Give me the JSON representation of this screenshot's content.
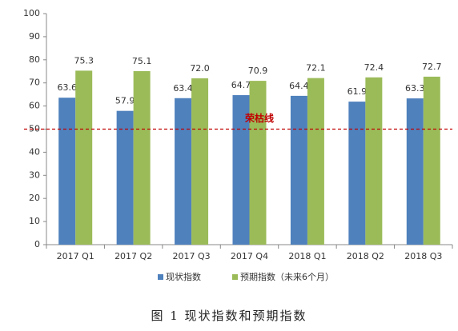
{
  "chart_data": {
    "type": "bar",
    "categories": [
      "2017 Q1",
      "2017 Q2",
      "2017 Q3",
      "2017 Q4",
      "2018 Q1",
      "2018 Q2",
      "2018 Q3"
    ],
    "series": [
      {
        "name": "现状指数",
        "color": "#4f81bd",
        "values": [
          63.6,
          57.9,
          63.4,
          64.7,
          64.4,
          61.9,
          63.3
        ]
      },
      {
        "name": "预期指数（未来6个月）",
        "color": "#9bbb59",
        "values": [
          75.3,
          75.1,
          72.0,
          70.9,
          72.1,
          72.4,
          72.7
        ],
        "value_labels": [
          "75.3",
          "75.1",
          "72.0",
          "70.9",
          "72.1",
          "72.4",
          "72.7"
        ]
      }
    ],
    "ylim": [
      0,
      100
    ],
    "yticks": [
      0,
      10,
      20,
      30,
      40,
      50,
      60,
      70,
      80,
      90,
      100
    ],
    "reference_line": {
      "value": 50,
      "label": "荣枯线",
      "color": "#c00000"
    },
    "caption": "图 1  现状指数和预期指数",
    "legend": "bottom"
  }
}
